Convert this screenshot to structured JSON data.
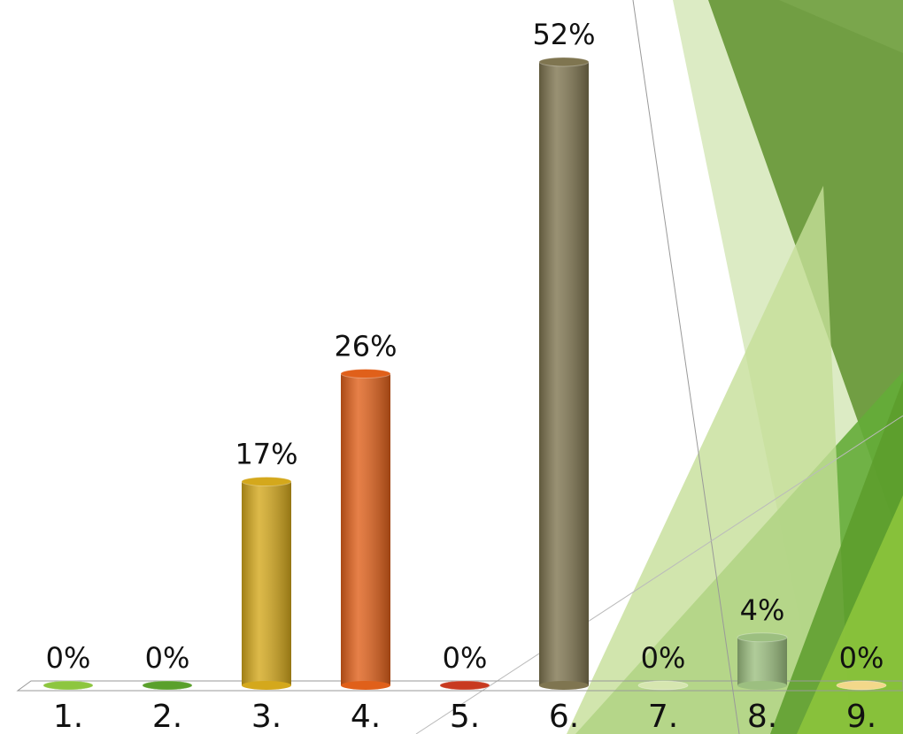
{
  "chart_data": {
    "type": "bar",
    "categories": [
      "1.",
      "2.",
      "3.",
      "4.",
      "5.",
      "6.",
      "7.",
      "8.",
      "9."
    ],
    "values": [
      0,
      0,
      17,
      26,
      0,
      52,
      0,
      4,
      0
    ],
    "value_labels": [
      "0%",
      "0%",
      "17%",
      "26%",
      "0%",
      "52%",
      "0%",
      "4%",
      "0%"
    ],
    "colors": [
      "#8dc63f",
      "#5aa02c",
      "#d4a81c",
      "#e0601a",
      "#c83a20",
      "#7f7550",
      "#d6e6b0",
      "#9cbf80",
      "#f3d88a"
    ]
  }
}
